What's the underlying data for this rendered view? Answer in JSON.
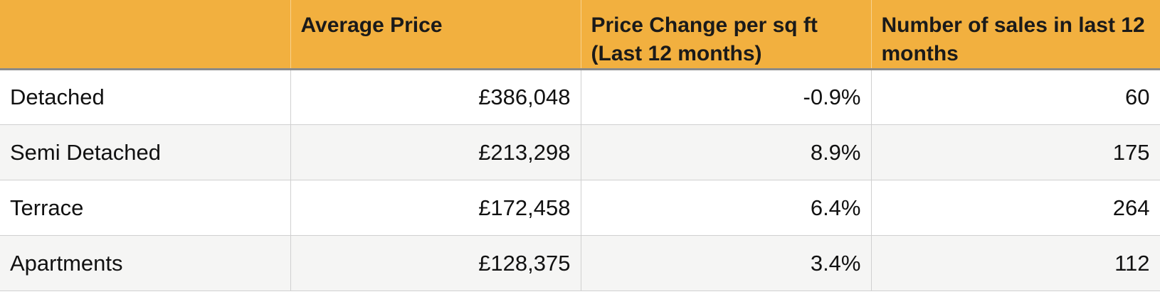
{
  "table": {
    "header": [
      "Average Price",
      "Price Change per sq ft (Last 12 months)",
      "Number of sales in last 12 months"
    ],
    "rows": [
      [
        "Detached",
        "£386,048",
        "-0.9%",
        "60"
      ],
      [
        "Semi Detached",
        "£213,298",
        "8.9%",
        "175"
      ],
      [
        "Terrace",
        "£172,458",
        "6.4%",
        "264"
      ],
      [
        "Apartments",
        "£128,375",
        "3.4%",
        "112"
      ]
    ]
  }
}
